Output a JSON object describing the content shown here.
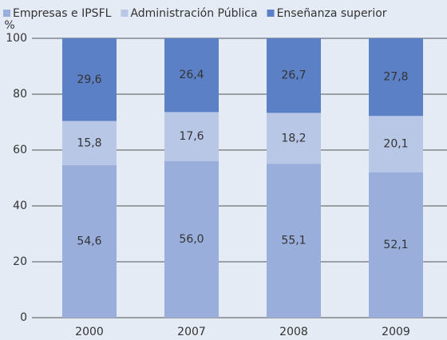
{
  "chart_data": {
    "type": "stacked-bar",
    "y_label": "%",
    "categories": [
      "2000",
      "2007",
      "2008",
      "2009"
    ],
    "series": [
      {
        "name": "Empresas e IPSFL",
        "color": "#9aaedc",
        "values": [
          54.6,
          56.0,
          55.1,
          52.1
        ],
        "value_labels": [
          "54,6",
          "56,0",
          "55,1",
          "52,1"
        ]
      },
      {
        "name": "Administración Pública",
        "color": "#b9c7e7",
        "values": [
          15.8,
          17.6,
          18.2,
          20.1
        ],
        "value_labels": [
          "15,8",
          "17,6",
          "18,2",
          "20,1"
        ]
      },
      {
        "name": "Enseñanza superior",
        "color": "#5b80c5",
        "values": [
          29.6,
          26.4,
          26.7,
          27.8
        ],
        "value_labels": [
          "29,6",
          "26,4",
          "26,7",
          "27,8"
        ]
      }
    ],
    "ylim": [
      0,
      100
    ],
    "yticks": [
      0,
      20,
      40,
      60,
      80,
      100
    ],
    "grid": true,
    "legend": "top"
  }
}
